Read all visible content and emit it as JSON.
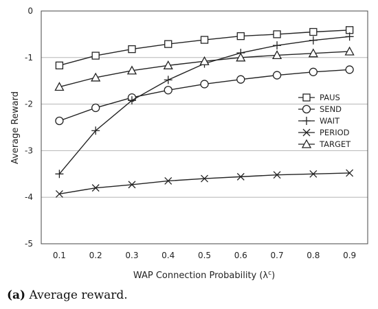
{
  "chart_data": {
    "type": "line",
    "title": "",
    "xlabel": "WAP Connection Probability (λ",
    "xlabel_sup": "c",
    "xlabel_close": ")",
    "ylabel": "Average Reward",
    "x": [
      0.1,
      0.2,
      0.3,
      0.4,
      0.5,
      0.6,
      0.7,
      0.8,
      0.9
    ],
    "x_tick_labels": [
      "0.1",
      "0.2",
      "0.3",
      "0.4",
      "0.5",
      "0.6",
      "0.7",
      "0.8",
      "0.9"
    ],
    "ylim": [
      -5,
      0
    ],
    "y_ticks": [
      0,
      -1,
      -2,
      -3,
      -4,
      -5
    ],
    "y_tick_labels": [
      "0",
      "-1",
      "-2",
      "-3",
      "-4",
      "-5"
    ],
    "grid": "horizontal",
    "legend_position": "right",
    "series": [
      {
        "name": "PAUS",
        "marker": "square",
        "values": [
          -1.17,
          -0.96,
          -0.82,
          -0.71,
          -0.62,
          -0.54,
          -0.5,
          -0.45,
          -0.41
        ]
      },
      {
        "name": "SEND",
        "marker": "circle",
        "values": [
          -2.36,
          -2.08,
          -1.86,
          -1.7,
          -1.57,
          -1.47,
          -1.38,
          -1.31,
          -1.26
        ]
      },
      {
        "name": "WAIT",
        "marker": "plus",
        "values": [
          -3.5,
          -2.57,
          -1.92,
          -1.48,
          -1.13,
          -0.9,
          -0.74,
          -0.63,
          -0.55
        ]
      },
      {
        "name": "PERIOD",
        "marker": "x",
        "values": [
          -3.93,
          -3.8,
          -3.73,
          -3.65,
          -3.6,
          -3.56,
          -3.52,
          -3.5,
          -3.48
        ]
      },
      {
        "name": "TARGET",
        "marker": "triangle",
        "values": [
          -1.63,
          -1.43,
          -1.28,
          -1.17,
          -1.08,
          -1.0,
          -0.95,
          -0.91,
          -0.87
        ]
      }
    ]
  },
  "caption": {
    "label": "(a)",
    "text": "Average reward."
  }
}
